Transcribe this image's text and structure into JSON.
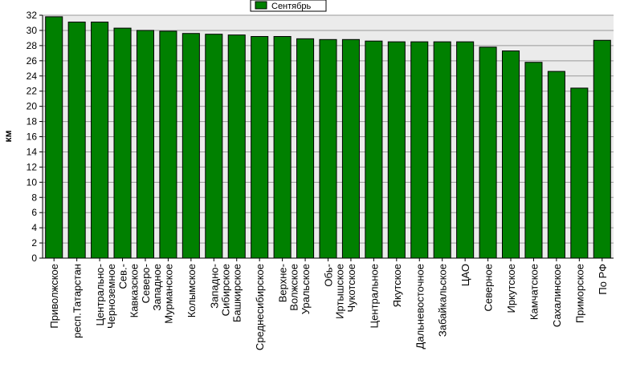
{
  "chart_data": {
    "type": "bar",
    "ylabel": "км",
    "ylim": [
      0,
      32
    ],
    "ytick_step": 2,
    "grid": true,
    "legend_position": "top-center",
    "bar_color": "#008000",
    "plot_background": "#ebebeb",
    "categories": [
      "Приволжское",
      "респ.Татарстан",
      "Центрально-Черноземное",
      "Сев.-Кавказское",
      "Северо-Западное",
      "Мурманское",
      "Колымское",
      "Западно-Сибирское",
      "Башкирское",
      "Среднесибирское",
      "Верхне-Волжское",
      "Уральское",
      "Обь-Иртышское",
      "Чукотское",
      "Центральное",
      "Якутское",
      "Дальневосточное",
      "Забайкальское",
      "ЦАО",
      "Северное",
      "Иркутское",
      "Камчатское",
      "Сахалинское",
      "Приморское",
      "По РФ"
    ],
    "series": [
      {
        "name": "Сентябрь",
        "values": [
          31.8,
          31.1,
          31.1,
          30.3,
          30.0,
          29.9,
          29.6,
          29.5,
          29.4,
          29.2,
          29.2,
          28.9,
          28.8,
          28.8,
          28.6,
          28.5,
          28.5,
          28.5,
          28.5,
          27.8,
          27.3,
          25.8,
          24.6,
          22.4,
          28.7
        ]
      }
    ]
  }
}
